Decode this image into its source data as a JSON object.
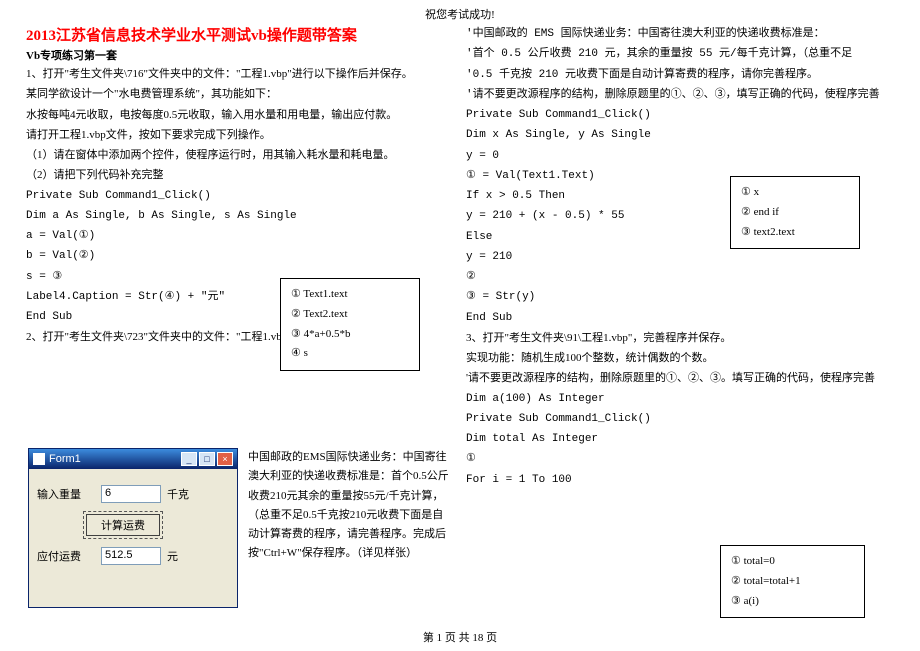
{
  "header": {
    "wish": "祝您考试成功!"
  },
  "title": "2013江苏省信息技术学业水平测试vb操作题带答案",
  "set_title": "Vb专项练习第一套",
  "left": {
    "q1_open": "1、打开\"考生文件夹\\716\"文件夹中的文件：\"工程1.vbp\"进行以下操作后并保存。",
    "q1_desc1": "某同学欲设计一个\"水电费管理系统\"，其功能如下：",
    "q1_desc2": "水按每吨4元收取，电按每度0.5元收取，输入用水量和用电量，输出应付款。",
    "q1_desc3": "请打开工程1.vbp文件，按如下要求完成下列操作。",
    "q1_step1": "（1）请在窗体中添加两个控件，使程序运行时，用其输入耗水量和耗电量。",
    "q1_step2": "（2）请把下列代码补充完整",
    "code1_l1": "Private Sub Command1_Click()",
    "code1_l2": "Dim a As Single, b As Single, s As Single",
    "code1_l3": "a = Val(①)",
    "code1_l4": "b = Val(②)",
    "code1_l5": "s = ③",
    "code1_l6": "Label4.Caption = Str(④) + \"元\"",
    "code1_l7": "End Sub",
    "q2_open": "2、打开\"考生文件夹\\723\"文件夹中的文件：\"工程1.vbp\"  进行以下操作后并保存。",
    "desc_block": "中国邮政的EMS国际快递业务：中国寄往澳大利亚的快递收费标准是：首个0.5公斤收费210元其余的重量按55元/千克计算，（总重不足0.5千克按210元收费下面是自动计算寄费的程序，请完善程序。完成后按\"Ctrl+W\"保存程序。（详见样张）"
  },
  "box1": {
    "l1": "①  Text1.text",
    "l2": "②  Text2.text",
    "l3": "③  4*a+0.5*b",
    "l4": "④  s"
  },
  "form1": {
    "title": "Form1",
    "lbl_weight": "输入重量",
    "val_weight": "6",
    "unit_weight": "千克",
    "btn_calc": "计算运费",
    "lbl_fee": "应付运费",
    "val_fee": "512.5",
    "unit_fee": "元"
  },
  "right": {
    "r1": "'中国邮政的 EMS 国际快递业务：中国寄往澳大利亚的快递收费标准是：",
    "r2": "'首个 0.5 公斤收费 210 元，其余的重量按 55 元/每千克计算，（总重不足",
    "r3": "'0.5 千克按 210 元收费下面是自动计算寄费的程序，请你完善程序。",
    "r4": "'请不要更改源程序的结构，删除原题里的①、②、③，填写正确的代码，使程序完善",
    "c1": "Private Sub Command1_Click()",
    "c2": "  Dim x As Single, y As Single",
    "c3": "  y = 0",
    "c4": "  ① = Val(Text1.Text)",
    "c5": "  If x > 0.5 Then",
    "c6": "      y = 210 + (x - 0.5) * 55",
    "c7": "  Else",
    "c8": "      y = 210",
    "c9": "  ②",
    "c10": "  ③ = Str(y)",
    "c11": "End Sub",
    "q3_open": "3、打开\"考生文件夹\\91\\工程1.vbp\"，完善程序并保存。",
    "q3_func": "实现功能：随机生成100个整数，统计偶数的个数。",
    "q3_note": "'请不要更改源程序的结构，删除原题里的①、②、③。填写正确的代码，使程序完善",
    "c12": "Dim a(100) As Integer",
    "c13": "",
    "c14": "Private Sub Command1_Click()",
    "c15": "   Dim total As Integer",
    "c16": "   ①",
    "c17": "   For i = 1 To 100"
  },
  "box2": {
    "l1": "①    x",
    "l2": "②    end if",
    "l3": "③    text2.text"
  },
  "box3": {
    "l1": "①   total=0",
    "l2": "②   total=total+1",
    "l3": "③   a(i)"
  },
  "footer": "第 1 页 共 18 页"
}
